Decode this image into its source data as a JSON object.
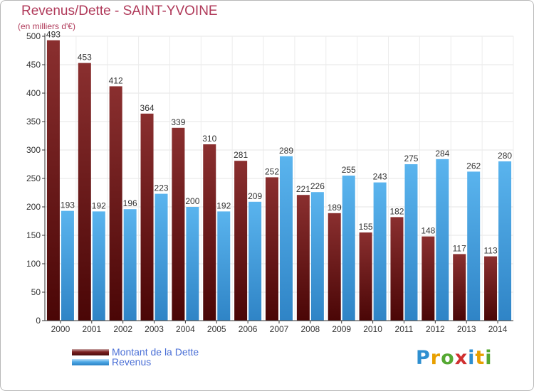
{
  "chart_data": {
    "type": "bar",
    "title": "Revenus/Dette - SAINT-YVOINE",
    "subtitle": "(en milliers d'€)",
    "categories": [
      "2000",
      "2001",
      "2002",
      "2003",
      "2004",
      "2005",
      "2006",
      "2007",
      "2008",
      "2009",
      "2010",
      "2011",
      "2012",
      "2013",
      "2014"
    ],
    "series": [
      {
        "name": "Montant de la Dette",
        "color": "#7a1f1f",
        "values": [
          493,
          453,
          412,
          364,
          339,
          310,
          281,
          252,
          221,
          189,
          155,
          182,
          148,
          117,
          113
        ]
      },
      {
        "name": "Revenus",
        "color": "#4ea8e6",
        "values": [
          193,
          192,
          196,
          223,
          200,
          192,
          209,
          289,
          226,
          255,
          243,
          275,
          284,
          262,
          280
        ]
      }
    ],
    "ylim": [
      0,
      500
    ],
    "yticks": [
      0,
      50,
      100,
      150,
      200,
      250,
      300,
      350,
      400,
      450,
      500
    ],
    "grid": true,
    "legend": "bottom-left"
  },
  "legend": {
    "debt_label": "Montant de la Dette",
    "revenue_label": "Revenus"
  },
  "brand": {
    "letters": [
      "P",
      "r",
      "o",
      "x",
      "i",
      "t",
      "i"
    ],
    "colors": [
      "#2e8fd0",
      "#e8a000",
      "#55a832",
      "#d03030",
      "#2e8fd0",
      "#e8a000",
      "#55a832"
    ]
  }
}
